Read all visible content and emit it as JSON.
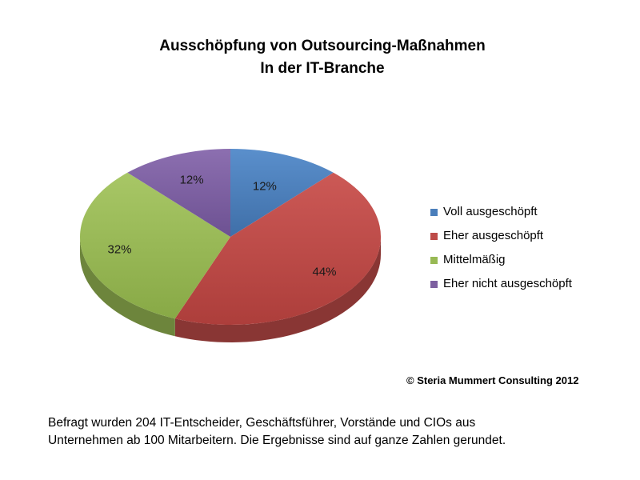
{
  "chart_data": {
    "type": "pie",
    "title": [
      "Ausschöpfung von Outsourcing-Maßnahmen",
      "In der IT-Branche"
    ],
    "categories": [
      "Voll ausgeschöpft",
      "Eher ausgeschöpft",
      "Mittelmäßig",
      "Eher nicht ausgeschöpft"
    ],
    "values": [
      12,
      44,
      32,
      12
    ],
    "value_labels": [
      "12%",
      "44%",
      "32%",
      "12%"
    ],
    "colors": [
      "#4a7ebb",
      "#be4b48",
      "#98b954",
      "#7d60a0"
    ],
    "legend_position": "right",
    "three_d": true
  },
  "source": "© Steria Mummert Consulting 2012",
  "footnote": [
    "Befragt wurden 204 IT-Entscheider, Geschäftsführer, Vorstände und CIOs aus",
    "Unternehmen ab 100 Mitarbeitern. Die Ergebnisse sind auf ganze Zahlen gerundet."
  ]
}
